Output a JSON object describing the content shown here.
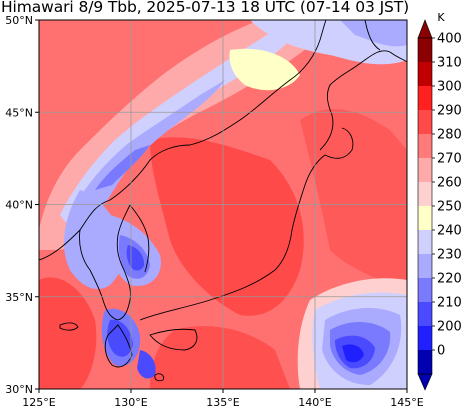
{
  "title": "Himawari 8/9 Tbb, 2025-07-13 18 UTC (07-14 03 JST)",
  "map": {
    "lon_range": [
      125,
      145
    ],
    "lat_range": [
      30,
      50
    ],
    "lon_ticks": [
      {
        "value": 125,
        "label": "125°E"
      },
      {
        "value": 130,
        "label": "130°E"
      },
      {
        "value": 135,
        "label": "135°E"
      },
      {
        "value": 140,
        "label": "140°E"
      },
      {
        "value": 145,
        "label": "145°E"
      }
    ],
    "lat_ticks": [
      {
        "value": 50,
        "label": "50°N"
      },
      {
        "value": 45,
        "label": "45°N"
      },
      {
        "value": 40,
        "label": "40°N"
      },
      {
        "value": 35,
        "label": "35°N"
      },
      {
        "value": 30,
        "label": "30°N"
      }
    ],
    "gridlines": true
  },
  "colorbar": {
    "unit": "K",
    "ticks": [
      "400",
      "310",
      "300",
      "290",
      "280",
      "270",
      "260",
      "250",
      "240",
      "230",
      "220",
      "210",
      "200",
      "0"
    ],
    "colors": [
      "#8b0000",
      "#c00000",
      "#ff2020",
      "#ff4a4a",
      "#ff7a7a",
      "#ffaaaa",
      "#ffd0d0",
      "#ffffc8",
      "#d0d0ff",
      "#aaaaff",
      "#7a7aff",
      "#4a4aff",
      "#2020ff",
      "#0000b0"
    ],
    "extend": "both"
  },
  "coastline_color": "#000000"
}
